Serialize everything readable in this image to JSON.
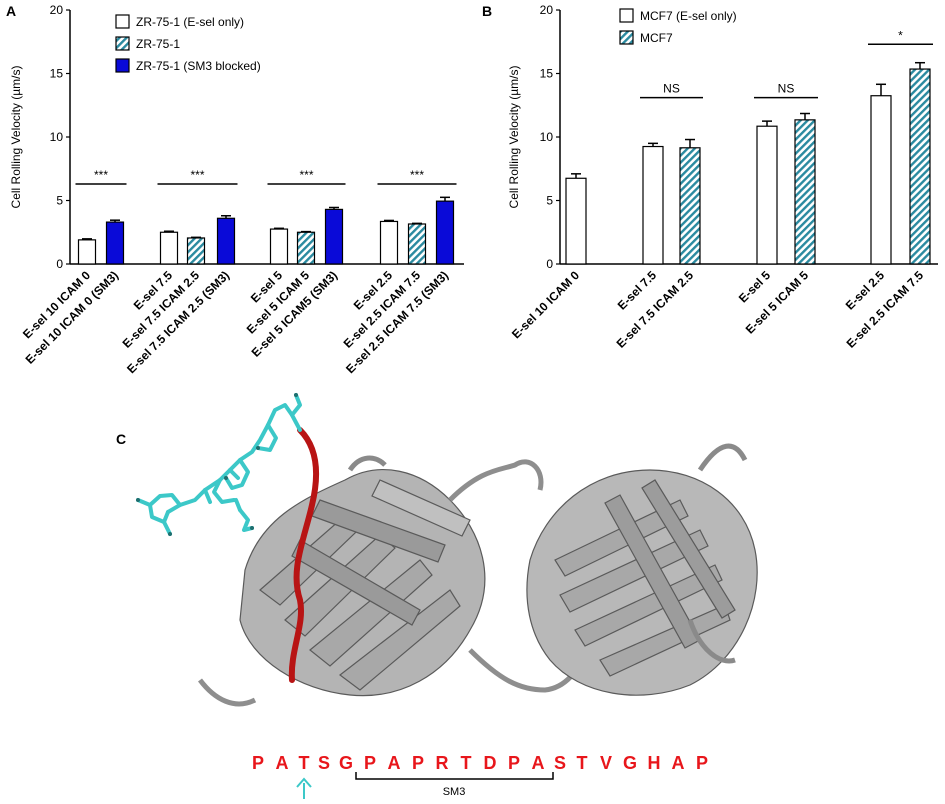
{
  "panels": {
    "a": "A",
    "b": "B",
    "c": "C"
  },
  "colors": {
    "open": "#ffffff",
    "hatch_bg": "#ffffff",
    "hatch_fg": "#2a8aa0",
    "blocked": "#0a0ad8",
    "protein": "#a6a6a6",
    "highlight": "#b81414",
    "ligand": "#3cc8c8",
    "sequence": "#e8161b",
    "arrow": "#3cc8c8"
  },
  "chart_data": [
    {
      "type": "bar",
      "panel": "A",
      "ylabel": "Cell Rolling Velocity (µm/s)",
      "ylim": [
        0,
        20
      ],
      "yticks": [
        "0",
        "5",
        "10",
        "15",
        "20"
      ],
      "legend_position": "top-left",
      "legend": [
        "ZR-75-1 (E-sel only)",
        "ZR-75-1",
        "ZR-75-1 (SM3 blocked)"
      ],
      "bars": [
        {
          "label": "E-sel 10 ICAM 0",
          "series": 0,
          "value": 1.9,
          "err": 0.08
        },
        {
          "label": "E-sel 10 ICAM 0 (SM3)",
          "series": 2,
          "value": 3.3,
          "err": 0.15
        },
        {
          "label": "E-sel 7.5",
          "series": 0,
          "value": 2.5,
          "err": 0.08
        },
        {
          "label": "E-sel 7.5 ICAM 2.5",
          "series": 1,
          "value": 2.05,
          "err": 0.05
        },
        {
          "label": "E-sel 7.5 ICAM 2.5 (SM3)",
          "series": 2,
          "value": 3.6,
          "err": 0.2
        },
        {
          "label": "E-sel 5",
          "series": 0,
          "value": 2.75,
          "err": 0.06
        },
        {
          "label": "E-sel 5 ICAM 5",
          "series": 1,
          "value": 2.5,
          "err": 0.05
        },
        {
          "label": "E-sel 5 ICAM5 (SM3)",
          "series": 2,
          "value": 4.3,
          "err": 0.15
        },
        {
          "label": "E-sel 2.5",
          "series": 0,
          "value": 3.35,
          "err": 0.08
        },
        {
          "label": "E-sel 2.5 ICAM 7.5",
          "series": 1,
          "value": 3.15,
          "err": 0.05
        },
        {
          "label": "E-sel 2.5 ICAM 7.5 (SM3)",
          "series": 2,
          "value": 4.95,
          "err": 0.3
        }
      ],
      "significance": [
        {
          "text": "***",
          "from": 0,
          "to": 1,
          "y": 6.3
        },
        {
          "text": "***",
          "from": 2,
          "to": 4,
          "y": 6.3
        },
        {
          "text": "***",
          "from": 5,
          "to": 7,
          "y": 6.3
        },
        {
          "text": "***",
          "from": 8,
          "to": 10,
          "y": 6.3
        }
      ]
    },
    {
      "type": "bar",
      "panel": "B",
      "ylabel": "Cell Rolling Velocity (µm/s)",
      "ylim": [
        0,
        20
      ],
      "yticks": [
        "0",
        "5",
        "10",
        "15",
        "20"
      ],
      "legend_position": "top-left",
      "legend": [
        "MCF7 (E-sel only)",
        "MCF7"
      ],
      "bars": [
        {
          "label": "E-sel 10 ICAM 0",
          "series": 0,
          "value": 6.75,
          "err": 0.35
        },
        {
          "label": "E-sel 7.5",
          "series": 0,
          "value": 9.25,
          "err": 0.25
        },
        {
          "label": "E-sel 7.5 ICAM 2.5",
          "series": 1,
          "value": 9.15,
          "err": 0.65
        },
        {
          "label": "E-sel 5",
          "series": 0,
          "value": 10.85,
          "err": 0.4
        },
        {
          "label": "E-sel 5 ICAM 5",
          "series": 1,
          "value": 11.35,
          "err": 0.5
        },
        {
          "label": "E-sel 2.5",
          "series": 0,
          "value": 13.25,
          "err": 0.9
        },
        {
          "label": "E-sel 2.5 ICAM 7.5",
          "series": 1,
          "value": 15.35,
          "err": 0.5
        }
      ],
      "significance": [
        {
          "text": "NS",
          "from": 1,
          "to": 2,
          "y": 13.1
        },
        {
          "text": "NS",
          "from": 3,
          "to": 4,
          "y": 13.1
        },
        {
          "text": "*",
          "from": 5,
          "to": 6,
          "y": 17.3
        }
      ]
    }
  ],
  "structure": {
    "sequence": [
      "P",
      "A",
      "T",
      "S",
      "G",
      "P",
      "A",
      "P",
      "R",
      "T",
      "D",
      "P",
      "A",
      "S",
      "T",
      "V",
      "G",
      "H",
      "A",
      "P"
    ],
    "bracket_label": "SM3"
  }
}
